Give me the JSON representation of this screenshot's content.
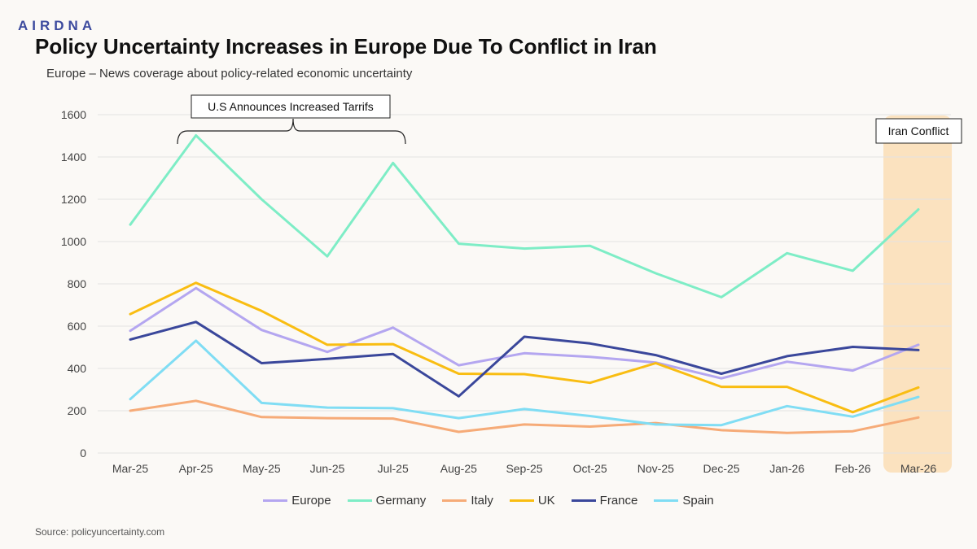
{
  "brand": {
    "logo_text": "AIRDNA"
  },
  "header": {
    "title": "Policy Uncertainty Increases in Europe Due To Conflict in Iran",
    "subtitle": "Europe – News coverage about policy-related economic uncertainty"
  },
  "footer": {
    "source": "Source: policyuncertainty.com"
  },
  "annotations": {
    "tariffs_label": "U.S Announces Increased Tarrifs",
    "iran_label": "Iran Conflict"
  },
  "colors": {
    "background": "#fbf9f6",
    "highlight": "#fbe2bf",
    "grid": "#e3e3e3"
  },
  "chart_data": {
    "type": "line",
    "title": "Policy Uncertainty Increases in Europe Due To Conflict in Iran",
    "subtitle": "Europe – News coverage about policy-related economic uncertainty",
    "xlabel": "",
    "ylabel": "",
    "ylim": [
      0,
      1600
    ],
    "yticks": [
      0,
      200,
      400,
      600,
      800,
      1000,
      1200,
      1400,
      1600
    ],
    "grid": true,
    "legend_position": "bottom",
    "categories": [
      "Mar-25",
      "Apr-25",
      "May-25",
      "Jun-25",
      "Jul-25",
      "Aug-25",
      "Sep-25",
      "Oct-25",
      "Nov-25",
      "Dec-25",
      "Jan-26",
      "Feb-26",
      "Mar-26"
    ],
    "series": [
      {
        "name": "Europe",
        "color": "#b4a6f0",
        "values": [
          578,
          780,
          582,
          478,
          593,
          415,
          472,
          455,
          428,
          353,
          432,
          390,
          512
        ]
      },
      {
        "name": "Germany",
        "color": "#7eedc6",
        "values": [
          1080,
          1502,
          1200,
          930,
          1372,
          990,
          967,
          980,
          850,
          737,
          945,
          862,
          1152
        ]
      },
      {
        "name": "Italy",
        "color": "#f6ab78",
        "values": [
          200,
          247,
          170,
          165,
          163,
          100,
          135,
          125,
          142,
          108,
          95,
          103,
          168
        ]
      },
      {
        "name": "UK",
        "color": "#f9bd12",
        "values": [
          657,
          805,
          672,
          512,
          515,
          375,
          373,
          332,
          425,
          313,
          313,
          193,
          310
        ]
      },
      {
        "name": "France",
        "color": "#3a479b",
        "values": [
          537,
          620,
          425,
          445,
          468,
          268,
          550,
          518,
          463,
          375,
          458,
          502,
          487
        ]
      },
      {
        "name": "Spain",
        "color": "#80ddf4",
        "values": [
          255,
          531,
          237,
          215,
          212,
          165,
          208,
          175,
          135,
          132,
          222,
          172,
          265
        ]
      }
    ],
    "annotations": [
      {
        "text": "U.S Announces Increased Tarrifs",
        "span": [
          "Apr-25",
          "Jul-25"
        ]
      },
      {
        "text": "Iran Conflict",
        "highlight": "Mar-26"
      }
    ]
  }
}
